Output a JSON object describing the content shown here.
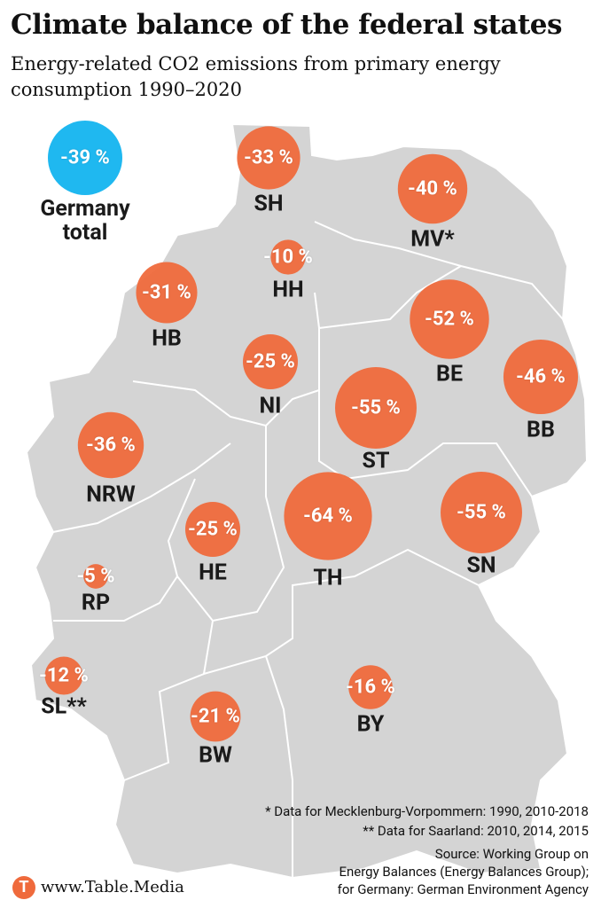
{
  "title": "Climate balance of the federal states",
  "subtitle": "Energy-related CO2 emissions from primary energy consumption 1990–2020",
  "total": {
    "value": -39,
    "value_label": "-39 %",
    "label": "Germany total"
  },
  "states": [
    {
      "code": "SH",
      "value": -33,
      "value_label": "-33 %"
    },
    {
      "code": "MV*",
      "value": -40,
      "value_label": "-40 %"
    },
    {
      "code": "HH",
      "value": -10,
      "value_label": "-10 %"
    },
    {
      "code": "HB",
      "value": -31,
      "value_label": "-31 %"
    },
    {
      "code": "BE",
      "value": -52,
      "value_label": "-52 %"
    },
    {
      "code": "NI",
      "value": -25,
      "value_label": "-25 %"
    },
    {
      "code": "BB",
      "value": -46,
      "value_label": "-46 %"
    },
    {
      "code": "ST",
      "value": -55,
      "value_label": "-55 %"
    },
    {
      "code": "NRW",
      "value": -36,
      "value_label": "-36 %"
    },
    {
      "code": "TH",
      "value": -64,
      "value_label": "-64 %"
    },
    {
      "code": "SN",
      "value": -55,
      "value_label": "-55 %"
    },
    {
      "code": "HE",
      "value": -25,
      "value_label": "-25 %"
    },
    {
      "code": "RP",
      "value": -5,
      "value_label": "-5 %"
    },
    {
      "code": "SL**",
      "value": -12,
      "value_label": "-12 %"
    },
    {
      "code": "BY",
      "value": -16,
      "value_label": "-16 %"
    },
    {
      "code": "BW",
      "value": -21,
      "value_label": "-21 %"
    }
  ],
  "footnotes": [
    "* Data for Mecklenburg-Vorpommern: 1990, 2010-2018",
    "** Data for Saarland: 2010, 2014, 2015"
  ],
  "source": [
    "Source: Working Group on",
    "Energy Balances (Energy Balances Group);",
    "for Germany: German Environment Agency"
  ],
  "logo": {
    "letter": "T",
    "text": "www.Table.Media"
  }
}
